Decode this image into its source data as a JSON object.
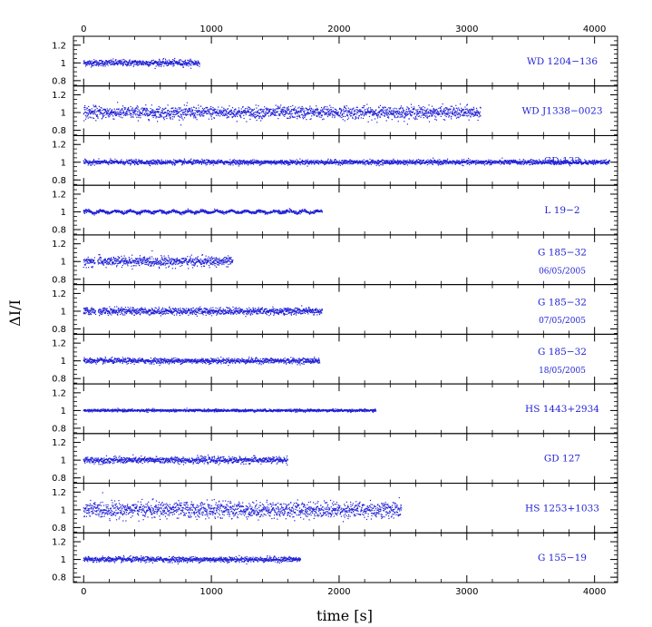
{
  "chart_data": {
    "type": "scatter",
    "xlabel": "time [s]",
    "ylabel": "ΔI/I",
    "xlim": [
      -80,
      4180
    ],
    "ylim": [
      0.74,
      1.3
    ],
    "x_ticks": [
      0,
      1000,
      2000,
      3000,
      4000
    ],
    "y_ticks": [
      0.8,
      1,
      1.2
    ],
    "x_tick_labels": [
      "0",
      "1000",
      "2000",
      "3000",
      "4000"
    ],
    "y_tick_labels": [
      "0.8",
      "1",
      "1.2"
    ],
    "point_color": "#1f1fd6",
    "panels": [
      {
        "name": "WD 1204−136",
        "subtitle": "",
        "duration": 910,
        "gaps": [],
        "scatter": 0.018,
        "variability": []
      },
      {
        "name": "WD J1338−0023",
        "subtitle": "",
        "duration": 3110,
        "gaps": [],
        "scatter": 0.035,
        "variability": []
      },
      {
        "name": "GD 133",
        "subtitle": "",
        "duration": 4120,
        "gaps": [],
        "scatter": 0.013,
        "variability": []
      },
      {
        "name": "L 19−2",
        "subtitle": "",
        "duration": 1870,
        "gaps": [],
        "scatter": 0.008,
        "variability": [
          {
            "amplitude": 0.012,
            "period": 113
          }
        ]
      },
      {
        "name": "G 185−32",
        "subtitle": "06/05/2005",
        "duration": 1170,
        "gaps": [
          [
            90,
            110
          ]
        ],
        "scatter": 0.028,
        "variability": []
      },
      {
        "name": "G 185−32",
        "subtitle": "07/05/2005",
        "duration": 1870,
        "gaps": [
          [
            95,
            115
          ]
        ],
        "scatter": 0.02,
        "variability": []
      },
      {
        "name": "G 185−32",
        "subtitle": "18/05/2005",
        "duration": 1850,
        "gaps": [],
        "scatter": 0.015,
        "variability": []
      },
      {
        "name": "HS 1443+2934",
        "subtitle": "",
        "duration": 2290,
        "gaps": [],
        "scatter": 0.007,
        "variability": []
      },
      {
        "name": "GD 127",
        "subtitle": "",
        "duration": 1600,
        "gaps": [],
        "scatter": 0.018,
        "variability": []
      },
      {
        "name": "HS 1253+1033",
        "subtitle": "",
        "duration": 2490,
        "gaps": [],
        "scatter": 0.045,
        "variability": []
      },
      {
        "name": "G 155−19",
        "subtitle": "",
        "duration": 1700,
        "gaps": [],
        "scatter": 0.015,
        "variability": []
      }
    ]
  }
}
